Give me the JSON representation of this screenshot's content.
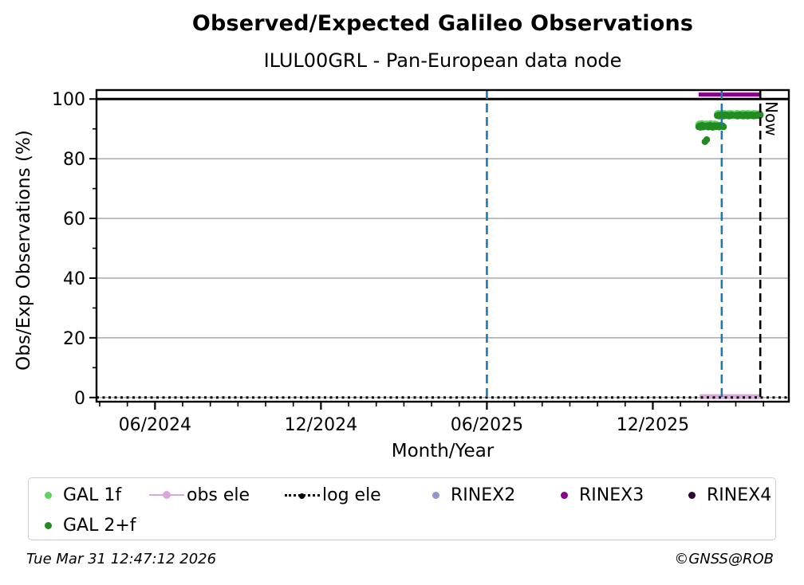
{
  "header": {
    "title": "Observed/Expected Galileo Observations",
    "subtitle": "ILUL00GRL - Pan-European data node"
  },
  "axes": {
    "xlabel": "Month/Year",
    "ylabel": "Obs/Exp Observations (%)"
  },
  "annotations": {
    "now_label": "Now"
  },
  "footer": {
    "timestamp": "Tue Mar 31 12:47:12 2026",
    "credit": "©GNSS@ROB"
  },
  "colors": {
    "event_line_blue": "#1f77b4",
    "now_line_black": "#000000",
    "grid_gray": "#b0b0b0",
    "hline_100_black": "#000000"
  },
  "legend": {
    "items": [
      {
        "label": "GAL 1f",
        "marker": "dot",
        "color": "#5FD35F"
      },
      {
        "label": "GAL 2+f",
        "marker": "dot",
        "color": "#228B22"
      },
      {
        "label": "obs ele",
        "marker": "line-dot",
        "color": "#D9A7D9"
      },
      {
        "label": "log ele",
        "marker": "dotted-line",
        "color": "#000000"
      },
      {
        "label": "RINEX2",
        "marker": "dot",
        "color": "#9494CE"
      },
      {
        "label": "RINEX3",
        "marker": "dot",
        "color": "#8B008B"
      },
      {
        "label": "RINEX4",
        "marker": "dot",
        "color": "#2D0A35"
      }
    ]
  },
  "chart_data": {
    "type": "scatter",
    "title": "Observed/Expected Galileo Observations",
    "subtitle": "ILUL00GRL - Pan-European data node",
    "xlabel": "Month/Year",
    "ylabel": "Obs/Exp Observations (%)",
    "xlim": [
      "2024-03-28",
      "2026-04-29"
    ],
    "ylim": [
      -1.4,
      103
    ],
    "x_major_ticks": [
      "06/2024",
      "12/2024",
      "06/2025",
      "12/2025"
    ],
    "x_minor_tick_unit": "month",
    "y_major_ticks": [
      0,
      20,
      40,
      60,
      80,
      100
    ],
    "y_minor_ticks": [
      10,
      30,
      50,
      70,
      90
    ],
    "grid": "horizontal-gray",
    "legend_position": "below",
    "reference_lines": [
      {
        "name": "hline-100",
        "value": 100,
        "color": "#000000",
        "width": 3
      }
    ],
    "event_lines": [
      {
        "date": "2025-06-01",
        "color": "#1f77b4",
        "style": "dashed",
        "label": ""
      },
      {
        "date": "2026-02-16",
        "color": "#1f77b4",
        "style": "dashed",
        "label": ""
      },
      {
        "date": "2026-03-28",
        "color": "#000000",
        "style": "dashed",
        "label": "Now"
      }
    ],
    "series": [
      {
        "name": "obs ele",
        "type": "line",
        "color": "#D9A7D9",
        "width": 6,
        "points": [
          [
            "2026-01-22",
            0.3
          ],
          [
            "2026-03-28",
            0.3
          ]
        ]
      },
      {
        "name": "log ele",
        "type": "dotted-line",
        "color": "#000000",
        "width": 3,
        "points": [
          [
            "2024-03-28",
            0
          ],
          [
            "2026-04-29",
            0
          ]
        ]
      },
      {
        "name": "GAL 1f",
        "type": "scatter",
        "color": "#5FD35F",
        "marker_radius": 4.2,
        "points": [
          [
            "2026-01-21",
            91.4
          ],
          [
            "2026-01-22",
            91.7
          ],
          [
            "2026-01-23",
            91.2
          ],
          [
            "2026-01-24",
            91.5
          ],
          [
            "2026-01-25",
            91.8
          ],
          [
            "2026-01-26",
            91.3
          ],
          [
            "2026-01-27",
            91.6
          ],
          [
            "2026-01-28",
            91.1
          ],
          [
            "2026-01-29",
            91.5
          ],
          [
            "2026-01-30",
            91.7
          ],
          [
            "2026-01-31",
            91.3
          ],
          [
            "2026-02-01",
            91.6
          ],
          [
            "2026-02-02",
            91.2
          ],
          [
            "2026-02-03",
            91.5
          ],
          [
            "2026-02-04",
            91.8
          ],
          [
            "2026-02-05",
            91.3
          ],
          [
            "2026-02-06",
            91.6
          ],
          [
            "2026-02-07",
            91.4
          ],
          [
            "2026-02-08",
            91.7
          ],
          [
            "2026-02-09",
            91.2
          ],
          [
            "2026-02-10",
            91.5
          ],
          [
            "2026-02-11",
            95.0
          ],
          [
            "2026-02-12",
            95.2
          ],
          [
            "2026-02-13",
            94.9
          ],
          [
            "2026-02-14",
            95.1
          ],
          [
            "2026-02-15",
            94.8
          ],
          [
            "2026-02-16",
            95.1
          ],
          [
            "2026-02-17",
            95.0
          ],
          [
            "2026-02-18",
            95.2
          ],
          [
            "2026-02-19",
            94.9
          ],
          [
            "2026-02-20",
            95.1
          ],
          [
            "2026-02-21",
            95.0
          ],
          [
            "2026-02-22",
            94.8
          ],
          [
            "2026-02-23",
            95.1
          ],
          [
            "2026-02-24",
            94.9
          ],
          [
            "2026-02-25",
            95.2
          ],
          [
            "2026-02-26",
            95.0
          ],
          [
            "2026-02-27",
            94.9
          ],
          [
            "2026-02-28",
            95.1
          ],
          [
            "2026-03-01",
            95.0
          ],
          [
            "2026-03-02",
            95.2
          ],
          [
            "2026-03-03",
            94.9
          ],
          [
            "2026-03-04",
            95.1
          ],
          [
            "2026-03-05",
            94.8
          ],
          [
            "2026-03-06",
            95.0
          ],
          [
            "2026-03-07",
            95.1
          ],
          [
            "2026-03-08",
            94.9
          ],
          [
            "2026-03-09",
            95.2
          ],
          [
            "2026-03-10",
            95.0
          ],
          [
            "2026-03-11",
            95.1
          ],
          [
            "2026-03-12",
            94.9
          ],
          [
            "2026-03-13",
            95.0
          ],
          [
            "2026-03-14",
            95.2
          ],
          [
            "2026-03-15",
            94.9
          ],
          [
            "2026-03-16",
            95.1
          ],
          [
            "2026-03-17",
            95.0
          ],
          [
            "2026-03-18",
            94.8
          ],
          [
            "2026-03-19",
            95.1
          ],
          [
            "2026-03-20",
            95.0
          ],
          [
            "2026-03-21",
            95.2
          ],
          [
            "2026-03-22",
            94.9
          ],
          [
            "2026-03-23",
            95.1
          ],
          [
            "2026-03-24",
            95.0
          ],
          [
            "2026-03-25",
            94.9
          ],
          [
            "2026-03-26",
            95.1
          ],
          [
            "2026-03-27",
            95.0
          ],
          [
            "2026-03-28",
            95.0
          ]
        ]
      },
      {
        "name": "GAL 2+f",
        "type": "scatter",
        "color": "#228B22",
        "marker_radius": 4.2,
        "points": [
          [
            "2026-01-21",
            90.7
          ],
          [
            "2026-01-22",
            91.0
          ],
          [
            "2026-01-23",
            90.5
          ],
          [
            "2026-01-24",
            90.9
          ],
          [
            "2026-01-25",
            91.2
          ],
          [
            "2026-01-26",
            90.6
          ],
          [
            "2026-01-27",
            91.0
          ],
          [
            "2026-01-28",
            85.7
          ],
          [
            "2026-01-29",
            90.8
          ],
          [
            "2026-01-30",
            86.4
          ],
          [
            "2026-01-31",
            91.1
          ],
          [
            "2026-02-01",
            90.6
          ],
          [
            "2026-02-02",
            90.9
          ],
          [
            "2026-02-03",
            91.2
          ],
          [
            "2026-02-04",
            90.7
          ],
          [
            "2026-02-05",
            91.0
          ],
          [
            "2026-02-06",
            90.5
          ],
          [
            "2026-02-07",
            90.8
          ],
          [
            "2026-02-08",
            91.1
          ],
          [
            "2026-02-09",
            90.7
          ],
          [
            "2026-02-10",
            91.0
          ],
          [
            "2026-02-11",
            90.8
          ],
          [
            "2026-02-12",
            91.1
          ],
          [
            "2026-02-13",
            90.6
          ],
          [
            "2026-02-14",
            90.9
          ],
          [
            "2026-02-15",
            91.2
          ],
          [
            "2026-02-16",
            90.8
          ],
          [
            "2026-02-17",
            91.0
          ],
          [
            "2026-02-18",
            90.7
          ],
          [
            "2026-02-11",
            94.4
          ],
          [
            "2026-02-12",
            94.6
          ],
          [
            "2026-02-13",
            94.3
          ],
          [
            "2026-02-14",
            94.5
          ],
          [
            "2026-02-15",
            94.7
          ],
          [
            "2026-02-16",
            94.4
          ],
          [
            "2026-02-17",
            94.6
          ],
          [
            "2026-02-18",
            94.3
          ],
          [
            "2026-02-19",
            94.5
          ],
          [
            "2026-02-20",
            94.7
          ],
          [
            "2026-02-21",
            94.4
          ],
          [
            "2026-02-22",
            94.6
          ],
          [
            "2026-02-23",
            94.5
          ],
          [
            "2026-02-24",
            94.3
          ],
          [
            "2026-02-25",
            94.6
          ],
          [
            "2026-02-26",
            94.4
          ],
          [
            "2026-02-27",
            94.7
          ],
          [
            "2026-02-28",
            94.5
          ],
          [
            "2026-03-01",
            94.4
          ],
          [
            "2026-03-02",
            94.6
          ],
          [
            "2026-03-03",
            94.3
          ],
          [
            "2026-03-04",
            94.5
          ],
          [
            "2026-03-05",
            94.7
          ],
          [
            "2026-03-06",
            94.4
          ],
          [
            "2026-03-07",
            94.6
          ],
          [
            "2026-03-08",
            94.5
          ],
          [
            "2026-03-09",
            94.3
          ],
          [
            "2026-03-10",
            94.6
          ],
          [
            "2026-03-11",
            94.4
          ],
          [
            "2026-03-12",
            94.7
          ],
          [
            "2026-03-13",
            94.5
          ],
          [
            "2026-03-14",
            94.3
          ],
          [
            "2026-03-15",
            94.6
          ],
          [
            "2026-03-16",
            94.4
          ],
          [
            "2026-03-17",
            94.5
          ],
          [
            "2026-03-18",
            94.7
          ],
          [
            "2026-03-19",
            94.4
          ],
          [
            "2026-03-20",
            94.6
          ],
          [
            "2026-03-21",
            94.3
          ],
          [
            "2026-03-22",
            94.5
          ],
          [
            "2026-03-23",
            94.6
          ],
          [
            "2026-03-24",
            94.4
          ],
          [
            "2026-03-25",
            94.7
          ],
          [
            "2026-03-26",
            94.5
          ],
          [
            "2026-03-27",
            94.4
          ],
          [
            "2026-03-28",
            94.6
          ]
        ]
      },
      {
        "name": "RINEX2",
        "type": "line",
        "color": "#9494CE",
        "width": 5,
        "points": []
      },
      {
        "name": "RINEX3",
        "type": "line",
        "color": "#8B008B",
        "width": 5,
        "points": [
          [
            "2026-01-21",
            101.5
          ],
          [
            "2026-03-28",
            101.5
          ]
        ]
      },
      {
        "name": "RINEX4",
        "type": "line",
        "color": "#2D0A35",
        "width": 5,
        "points": []
      }
    ]
  }
}
